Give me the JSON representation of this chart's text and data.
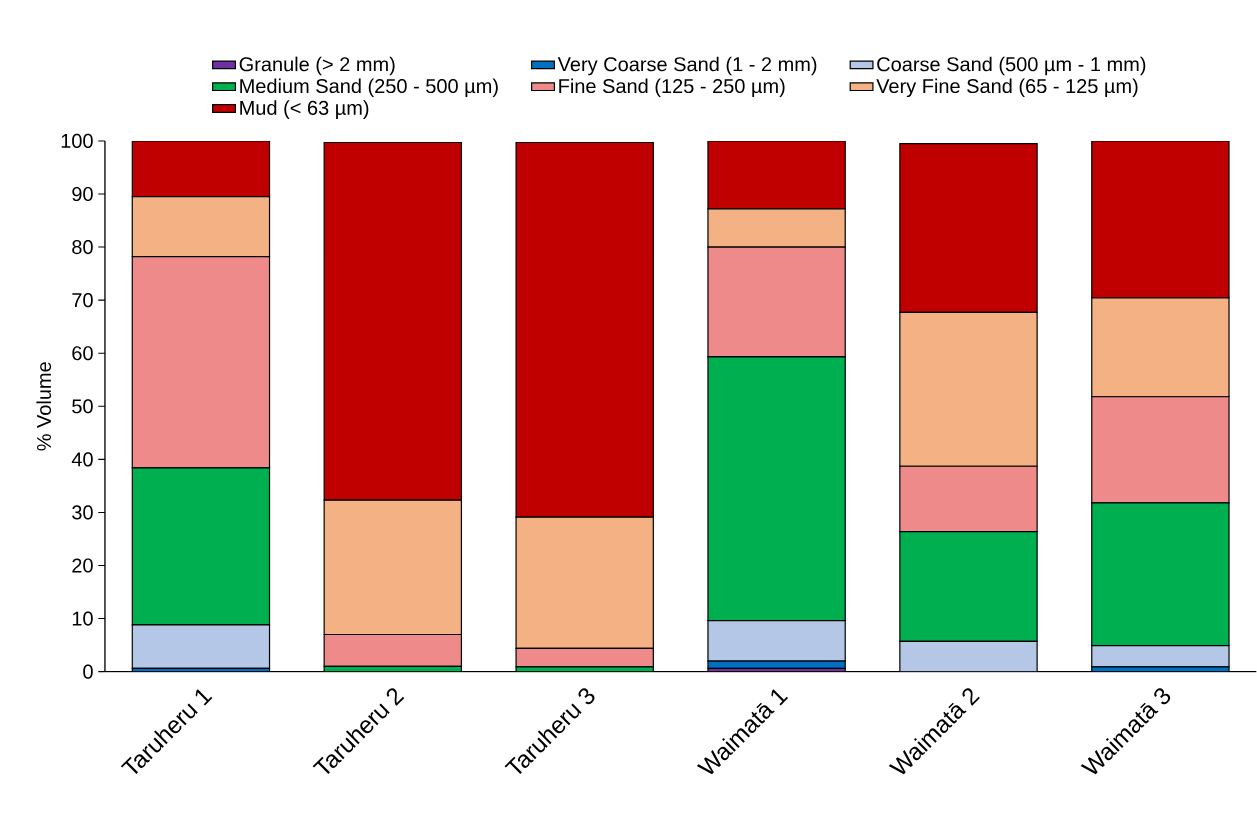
{
  "chart_data": {
    "type": "bar",
    "stacked": true,
    "ylabel": "% Volume",
    "legend": "top",
    "categories": [
      "Taruheru 1",
      "Taruheru 2",
      "Taruheru 3",
      "Waimatā 1",
      "Waimatā 2",
      "Waimatā 3"
    ],
    "ylim": [
      0,
      100
    ],
    "yticks": [
      0,
      10,
      20,
      30,
      40,
      50,
      60,
      70,
      80,
      90,
      100
    ],
    "series": [
      {
        "name": "Granule (> 2 mm)",
        "color": "#7030a0",
        "values": [
          0,
          0,
          0,
          0.6,
          0,
          0
        ]
      },
      {
        "name": "Very Coarse Sand (1 - 2 mm)",
        "color": "#0070c0",
        "values": [
          0.6,
          null,
          null,
          1.4,
          null,
          0.9
        ]
      },
      {
        "name": "Coarse Sand (500 µm - 1 mm)",
        "color": "#b4c7e7",
        "values": [
          8.2,
          0,
          0,
          7.6,
          5.7,
          4.0
        ]
      },
      {
        "name": "Medium Sand (250 - 500 µm)",
        "color": "#00b050",
        "values": [
          29.6,
          1.0,
          0.9,
          49.7,
          20.7,
          26.9
        ]
      },
      {
        "name": "Fine Sand (125 - 250 µm)",
        "color": "#ee8a8a",
        "values": [
          39.8,
          6.0,
          3.5,
          20.7,
          12.3,
          20.0
        ]
      },
      {
        "name": "Very Fine Sand (65 - 125 µm)",
        "color": "#f4b183",
        "values": [
          11.3,
          25.3,
          24.7,
          7.2,
          29.0,
          18.6
        ]
      },
      {
        "name": "Mud (< 63 µm)",
        "color": "#c00000",
        "values": [
          10.5,
          67.4,
          70.6,
          12.8,
          31.8,
          29.6
        ]
      }
    ]
  }
}
